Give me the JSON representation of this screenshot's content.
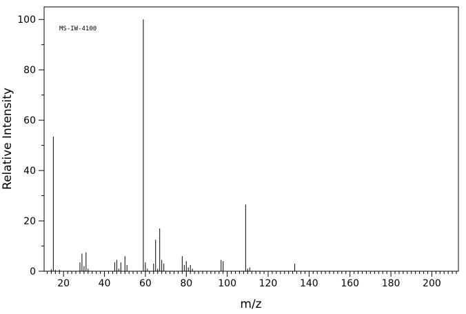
{
  "chart_data": {
    "type": "stem",
    "annotation": "MS-IW-4100",
    "xlabel": "m/z",
    "ylabel": "Relative Intensity",
    "x": [
      14,
      15,
      16,
      18,
      28,
      29,
      30,
      31,
      32,
      45,
      46,
      47,
      48,
      50,
      51,
      59,
      60,
      61,
      64,
      65,
      66,
      67,
      68,
      69,
      78,
      79,
      80,
      81,
      82,
      83,
      97,
      98,
      109,
      110,
      111,
      133
    ],
    "values": [
      0.8,
      53.5,
      0.5,
      0.6,
      3.5,
      7,
      2,
      7.5,
      1,
      3.5,
      4.5,
      1,
      3.5,
      6,
      2.5,
      100,
      3.5,
      1,
      3,
      12.5,
      1,
      17,
      4.5,
      3,
      6,
      2.5,
      4,
      1.5,
      2.5,
      1,
      4.5,
      4,
      26.5,
      1,
      1.5,
      3
    ],
    "color": "#000000",
    "xlim": [
      10.5,
      213
    ],
    "ylim": [
      0,
      105
    ],
    "xticks": [
      20,
      40,
      60,
      80,
      100,
      120,
      140,
      160,
      180,
      200
    ],
    "yticks": [
      0,
      20,
      40,
      60,
      80,
      100
    ],
    "xminorticks": [
      12,
      14,
      16,
      18,
      22,
      24,
      26,
      28,
      30,
      32,
      34,
      36,
      38,
      42,
      44,
      46,
      48,
      50,
      52,
      54,
      56,
      58,
      62,
      64,
      66,
      68,
      70,
      72,
      74,
      76,
      78,
      82,
      84,
      86,
      88,
      90,
      92,
      94,
      96,
      98,
      102,
      104,
      106,
      108,
      110,
      112,
      114,
      116,
      118,
      122,
      124,
      126,
      128,
      130,
      132,
      134,
      136,
      138,
      142,
      144,
      146,
      148,
      150,
      152,
      154,
      156,
      158,
      162,
      164,
      166,
      168,
      170,
      172,
      174,
      176,
      178,
      182,
      184,
      186,
      188,
      190,
      192,
      194,
      196,
      198,
      202,
      204,
      206,
      208,
      210,
      212
    ],
    "yminorticks": [
      10,
      30,
      50,
      70,
      90
    ]
  }
}
